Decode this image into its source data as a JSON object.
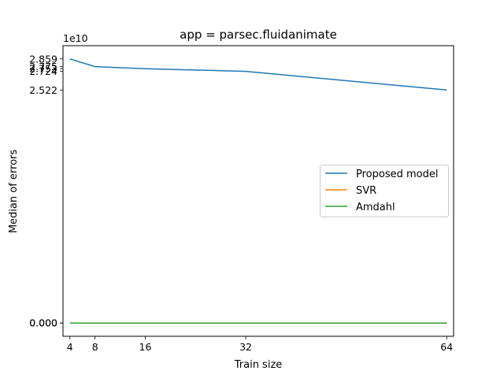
{
  "chart_data": {
    "type": "line",
    "title": "app = parsec.fluidanimate",
    "xlabel": "Train size",
    "ylabel": "Median of errors",
    "y_offset_label": "1e10",
    "x": [
      4,
      8,
      16,
      32,
      64
    ],
    "xticks": [
      "4",
      "8",
      "16",
      "32",
      "64"
    ],
    "yticks": [
      {
        "value": 28590000000,
        "label": "2.859"
      },
      {
        "value": 27750000000,
        "label": "2.775"
      },
      {
        "value": 27530000000,
        "label": "2.753"
      },
      {
        "value": 27240000000,
        "label": "2.724"
      },
      {
        "value": 25220000000,
        "label": "2.522"
      },
      {
        "value": 2000000,
        "label": "0.000"
      },
      {
        "value": 0,
        "label": "0.000"
      }
    ],
    "xlim": [
      2.9,
      65.1
    ],
    "ylim": [
      -1430000000,
      30020000000
    ],
    "grid": false,
    "legend_position": "center-right",
    "series": [
      {
        "name": "Proposed model",
        "color": "#1f77b4",
        "values": [
          28590000000,
          27750000000,
          27530000000,
          27240000000,
          25220000000
        ]
      },
      {
        "name": "SVR",
        "color": "#ff7f0e",
        "values": [
          2000000,
          2000000,
          2000000,
          2000000,
          2000000
        ]
      },
      {
        "name": "Amdahl",
        "color": "#2ca02c",
        "values": [
          0,
          0,
          0,
          0,
          0
        ]
      }
    ]
  }
}
